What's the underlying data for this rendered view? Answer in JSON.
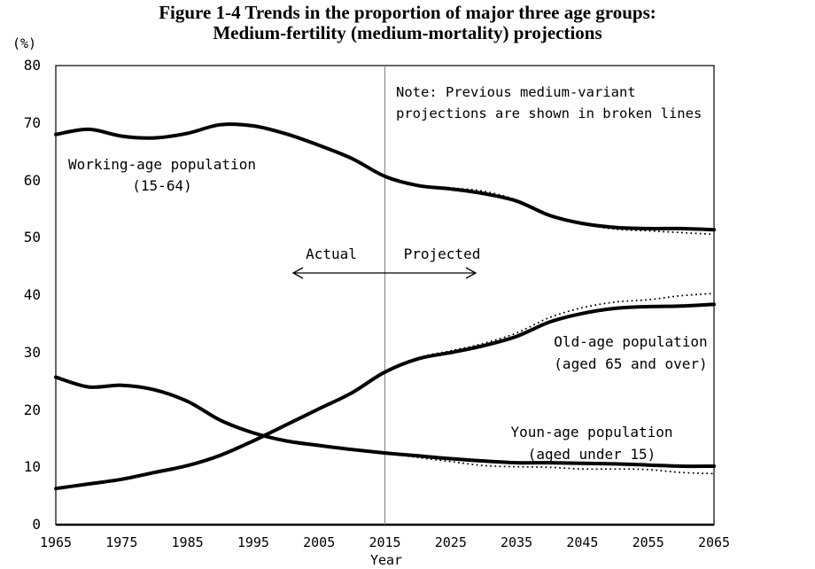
{
  "title": {
    "line1": "Figure 1-4 Trends in the proportion of major three age groups:",
    "line2": "Medium-fertility (medium-mortality) projections"
  },
  "axis": {
    "y_unit_label": "(%)",
    "x_label": "Year",
    "y_ticks": [
      0,
      10,
      20,
      30,
      40,
      50,
      60,
      70,
      80
    ],
    "x_ticks": [
      1965,
      1975,
      1985,
      1995,
      2005,
      2015,
      2025,
      2035,
      2045,
      2055,
      2065
    ]
  },
  "note": {
    "line1": "Note: Previous medium-variant",
    "line2": "projections are shown in broken lines"
  },
  "divider": {
    "year": 2015,
    "actual_label": "Actual",
    "projected_label": "Projected"
  },
  "annotations": {
    "working": {
      "line1": "Working-age population",
      "line2": "(15-64)"
    },
    "old": {
      "line1": "Old-age population",
      "line2": "(aged 65 and over)"
    },
    "young": {
      "line1": "Youn-age population",
      "line2": "(aged under 15)"
    }
  },
  "colors": {
    "line": "#000000",
    "divider": "#808080",
    "frame": "#000000",
    "background": "#ffffff"
  },
  "chart_data": {
    "type": "line",
    "title": "Figure 1-4 Trends in the proportion of major three age groups: Medium-fertility (medium-mortality) projections",
    "xlabel": "Year",
    "ylabel": "(%)",
    "xlim": [
      1965,
      2065
    ],
    "ylim": [
      0,
      80
    ],
    "grid": false,
    "divider_x": 2015,
    "series": [
      {
        "name": "Working-age population (15-64)",
        "line": "solid",
        "x": [
          1965,
          1970,
          1975,
          1980,
          1985,
          1990,
          1995,
          2000,
          2005,
          2010,
          2015,
          2020,
          2025,
          2030,
          2035,
          2040,
          2045,
          2050,
          2055,
          2060,
          2065
        ],
        "values": [
          68.0,
          68.9,
          67.7,
          67.4,
          68.2,
          69.7,
          69.5,
          68.1,
          66.1,
          63.8,
          60.7,
          59.1,
          58.5,
          57.7,
          56.4,
          53.9,
          52.5,
          51.8,
          51.6,
          51.6,
          51.4
        ]
      },
      {
        "name": "Old-age population (aged 65 and over)",
        "line": "solid",
        "x": [
          1965,
          1970,
          1975,
          1980,
          1985,
          1990,
          1995,
          2000,
          2005,
          2010,
          2015,
          2020,
          2025,
          2030,
          2035,
          2040,
          2045,
          2050,
          2055,
          2060,
          2065
        ],
        "values": [
          6.3,
          7.1,
          7.9,
          9.1,
          10.3,
          12.1,
          14.6,
          17.4,
          20.2,
          23.0,
          26.6,
          28.9,
          30.0,
          31.2,
          32.8,
          35.3,
          36.8,
          37.7,
          38.0,
          38.1,
          38.4
        ]
      },
      {
        "name": "Young-age population (aged under 15)",
        "line": "solid",
        "x": [
          1965,
          1970,
          1975,
          1980,
          1985,
          1990,
          1995,
          2000,
          2005,
          2010,
          2015,
          2020,
          2025,
          2030,
          2035,
          2040,
          2045,
          2050,
          2055,
          2060,
          2065
        ],
        "values": [
          25.7,
          24.0,
          24.3,
          23.5,
          21.5,
          18.2,
          16.0,
          14.6,
          13.8,
          13.1,
          12.5,
          12.0,
          11.5,
          11.1,
          10.8,
          10.8,
          10.7,
          10.6,
          10.4,
          10.2,
          10.2
        ]
      },
      {
        "name": "Working-age population previous projection",
        "line": "dotted",
        "x": [
          2015,
          2020,
          2025,
          2030,
          2035,
          2040,
          2045,
          2050,
          2055,
          2060,
          2065
        ],
        "values": [
          60.7,
          59.2,
          58.7,
          58.1,
          56.6,
          53.9,
          52.4,
          51.5,
          51.2,
          50.9,
          50.6
        ]
      },
      {
        "name": "Old-age population previous projection",
        "line": "dotted",
        "x": [
          2015,
          2020,
          2025,
          2030,
          2035,
          2040,
          2045,
          2050,
          2055,
          2060,
          2065
        ],
        "values": [
          26.6,
          29.1,
          30.3,
          31.6,
          33.4,
          36.1,
          37.8,
          38.8,
          39.2,
          39.9,
          40.3
        ]
      },
      {
        "name": "Young-age population previous projection",
        "line": "dotted",
        "x": [
          2015,
          2020,
          2025,
          2030,
          2035,
          2040,
          2045,
          2050,
          2055,
          2060,
          2065
        ],
        "values": [
          12.5,
          11.7,
          11.0,
          10.3,
          10.1,
          10.0,
          9.7,
          9.7,
          9.6,
          9.1,
          8.9
        ]
      }
    ]
  }
}
